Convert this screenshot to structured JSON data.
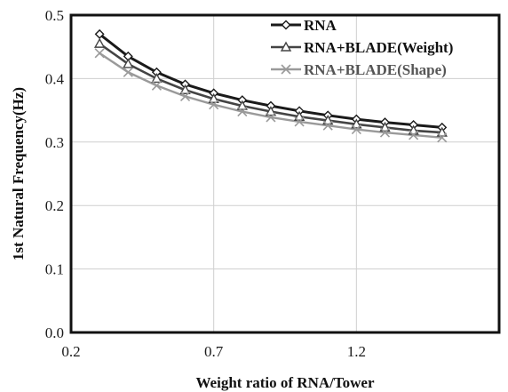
{
  "chart_data": {
    "type": "line",
    "title": "",
    "xlabel": "Weight ratio of RNA/Tower",
    "ylabel": "1st Natural Frequency(Hz)",
    "xlim": [
      0.2,
      1.7
    ],
    "ylim": [
      0.0,
      0.5
    ],
    "xticks": [
      0.2,
      0.7,
      1.2
    ],
    "xtick_labels": [
      "0.2",
      "0.7",
      "1.2"
    ],
    "yticks": [
      0.0,
      0.1,
      0.2,
      0.3,
      0.4,
      0.5
    ],
    "ytick_labels": [
      "0.0",
      "0.1",
      "0.2",
      "0.3",
      "0.4",
      "0.5"
    ],
    "grid": true,
    "legend_position": "top-right",
    "x": [
      0.3,
      0.4,
      0.5,
      0.6,
      0.7,
      0.8,
      0.9,
      1.0,
      1.1,
      1.2,
      1.3,
      1.4,
      1.5
    ],
    "series": [
      {
        "name": "RNA",
        "marker": "diamond",
        "color": "#1a1a1a",
        "values": [
          0.47,
          0.435,
          0.41,
          0.391,
          0.377,
          0.366,
          0.357,
          0.349,
          0.342,
          0.336,
          0.331,
          0.327,
          0.323
        ]
      },
      {
        "name": "RNA+BLADE(Weight)",
        "marker": "triangle",
        "color": "#444444",
        "values": [
          0.455,
          0.423,
          0.4,
          0.382,
          0.368,
          0.357,
          0.348,
          0.34,
          0.334,
          0.328,
          0.323,
          0.318,
          0.315
        ]
      },
      {
        "name": "RNA+BLADE(Shape)",
        "marker": "x",
        "color": "#9a9a9a",
        "values": [
          0.44,
          0.41,
          0.389,
          0.372,
          0.359,
          0.348,
          0.339,
          0.332,
          0.326,
          0.32,
          0.315,
          0.311,
          0.307
        ]
      }
    ]
  }
}
